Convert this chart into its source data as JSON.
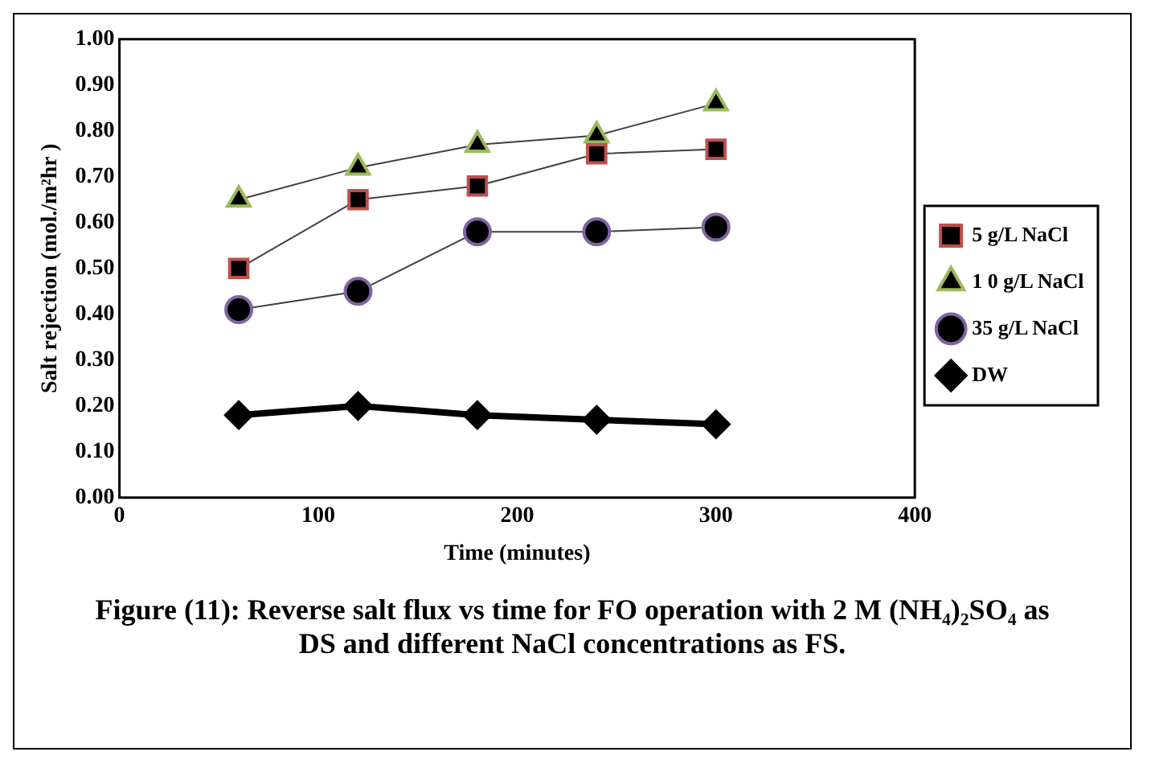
{
  "chart_data": {
    "type": "line",
    "title": "Figure (11): Reverse salt flux vs time for FO operation with 2 M (NH₄)₂SO₄ as DS and different  NaCl concentrations as FS.",
    "xlabel": "Time (minutes)",
    "ylabel": "Salt rejection (mol./m²hr )",
    "x": [
      60,
      120,
      180,
      240,
      300
    ],
    "series": [
      {
        "name": "5 g/L NaCl",
        "color": "#c0504d",
        "marker": "square",
        "values": [
          0.5,
          0.65,
          0.68,
          0.75,
          0.76
        ]
      },
      {
        "name": "1 0 g/L NaCl",
        "color": "#9bbb59",
        "marker": "triangle",
        "values": [
          0.65,
          0.72,
          0.77,
          0.79,
          0.86
        ]
      },
      {
        "name": "35 g/L NaCl",
        "color": "#8064a2",
        "marker": "circle",
        "values": [
          0.41,
          0.45,
          0.58,
          0.58,
          0.59
        ]
      },
      {
        "name": "DW",
        "color": "#000000",
        "marker": "diamond",
        "values": [
          0.18,
          0.2,
          0.18,
          0.17,
          0.16
        ]
      }
    ],
    "xlim": [
      0,
      400
    ],
    "xticks": [
      0,
      100,
      200,
      300,
      400
    ],
    "ylim": [
      0,
      1
    ],
    "yticks": [
      {
        "value": 0,
        "label": "0.00"
      },
      {
        "value": 0.1,
        "label": "0.10"
      },
      {
        "value": 0.2,
        "label": "0.20"
      },
      {
        "value": 0.3,
        "label": "0.30"
      },
      {
        "value": 0.4,
        "label": "0.40"
      },
      {
        "value": 0.5,
        "label": "0.50"
      },
      {
        "value": 0.6,
        "label": "0.60"
      },
      {
        "value": 0.7,
        "label": "0.70"
      },
      {
        "value": 0.8,
        "label": "0.80"
      },
      {
        "value": 0.9,
        "label": "0.90"
      },
      {
        "value": 1,
        "label": "1.00"
      }
    ],
    "grid": false,
    "legend": "right"
  }
}
